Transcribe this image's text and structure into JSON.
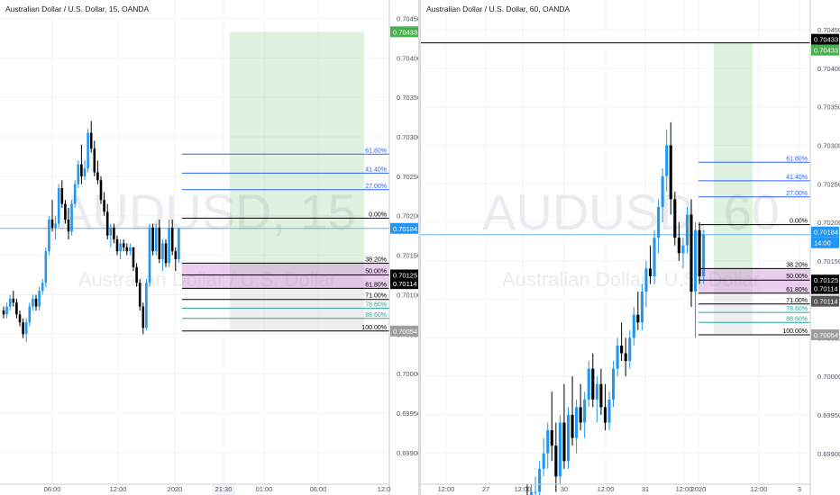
{
  "charts": [
    {
      "id": "left",
      "title": "Australian Dollar / U.S. Dollar, 15, OANDA",
      "watermark_symbol": "AUDUSD, 15",
      "watermark_desc": "Australian Dollar / U.S. Dollar",
      "x_ticks": [
        "06:00",
        "12:00",
        "2020",
        "21:30",
        "01:00",
        "06:00",
        "12:0"
      ],
      "current_time_label": "21:30"
    },
    {
      "id": "right",
      "title": "Australian Dollar / U.S. Dollar, 60, OANDA",
      "watermark_symbol": "AUDUSD, 60",
      "watermark_desc": "Australian Dollar / U.S. Dollar",
      "x_ticks": [
        "12:00",
        "27",
        "12:00",
        "30",
        "12:00",
        "31",
        "12:00",
        "2020",
        "12:00",
        "3"
      ],
      "current_time_label": "14:00"
    }
  ],
  "chart_data": [
    {
      "type": "candlestick",
      "title": "Australian Dollar / U.S. Dollar, 15, OANDA",
      "ylim": [
        0.6986,
        0.70455
      ],
      "y_ticks": [
        0.7045,
        0.704,
        0.7035,
        0.703,
        0.7025,
        0.702,
        0.7015,
        0.701,
        0.7005,
        0.7,
        0.6995,
        0.699
      ],
      "price_badges": [
        {
          "value": "0.70433",
          "color": "#4caf50"
        },
        {
          "value": "0.70184",
          "color": "#2196f3"
        },
        {
          "value": "0.70125",
          "color": "#000000"
        },
        {
          "value": "0.70114",
          "color": "#000000"
        },
        {
          "value": "0.70054",
          "color": "#9e9e9e"
        }
      ],
      "fibonacci_levels": [
        {
          "label": "61.80%",
          "value": 0.70278,
          "color": "#2962ff"
        },
        {
          "label": "41.40%",
          "value": 0.70254,
          "color": "#2962ff"
        },
        {
          "label": "27.00%",
          "value": 0.70233,
          "color": "#2962ff"
        },
        {
          "label": "0.00%",
          "value": 0.70197,
          "color": "#000000"
        },
        {
          "label": "38.20%",
          "value": 0.7014,
          "color": "#000000"
        },
        {
          "label": "50.00%",
          "value": 0.70125,
          "color": "#000000"
        },
        {
          "label": "61.80%",
          "value": 0.70108,
          "color": "#000000"
        },
        {
          "label": "71.00%",
          "value": 0.70094,
          "color": "#000000"
        },
        {
          "label": "78.60%",
          "value": 0.70083,
          "color": "#26a69a"
        },
        {
          "label": "88.60%",
          "value": 0.7007,
          "color": "#26a69a"
        },
        {
          "label": "100.00%",
          "value": 0.70054,
          "color": "#000000"
        }
      ],
      "position": {
        "entry": 0.70125,
        "target": 0.70433,
        "stop": 0.70054
      },
      "last_price": 0.70184,
      "candles": [
        [
          0.7008,
          0.70085,
          0.7007,
          0.70075
        ],
        [
          0.70075,
          0.7009,
          0.7007,
          0.70085
        ],
        [
          0.70085,
          0.701,
          0.7008,
          0.70095
        ],
        [
          0.70095,
          0.70105,
          0.70085,
          0.7009
        ],
        [
          0.7009,
          0.70095,
          0.7007,
          0.70075
        ],
        [
          0.70075,
          0.7008,
          0.7006,
          0.70065
        ],
        [
          0.70065,
          0.7007,
          0.70045,
          0.7005
        ],
        [
          0.7005,
          0.7007,
          0.7004,
          0.70065
        ],
        [
          0.70065,
          0.7009,
          0.7006,
          0.70085
        ],
        [
          0.70085,
          0.701,
          0.7008,
          0.70095
        ],
        [
          0.70095,
          0.701,
          0.7008,
          0.70085
        ],
        [
          0.70085,
          0.7011,
          0.7008,
          0.70105
        ],
        [
          0.70105,
          0.7012,
          0.701,
          0.70115
        ],
        [
          0.70115,
          0.7016,
          0.7011,
          0.70155
        ],
        [
          0.70155,
          0.702,
          0.7015,
          0.70195
        ],
        [
          0.70195,
          0.7022,
          0.7018,
          0.70185
        ],
        [
          0.70185,
          0.702,
          0.7017,
          0.7019
        ],
        [
          0.7019,
          0.7024,
          0.70185,
          0.70235
        ],
        [
          0.70235,
          0.70245,
          0.7021,
          0.70215
        ],
        [
          0.70215,
          0.7022,
          0.7019,
          0.70195
        ],
        [
          0.70195,
          0.7021,
          0.7017,
          0.7018
        ],
        [
          0.7018,
          0.7022,
          0.70175,
          0.70215
        ],
        [
          0.70215,
          0.70245,
          0.7021,
          0.7024
        ],
        [
          0.7024,
          0.7027,
          0.70235,
          0.70265
        ],
        [
          0.70265,
          0.7029,
          0.7024,
          0.7025
        ],
        [
          0.7025,
          0.7027,
          0.70245,
          0.7026
        ],
        [
          0.7026,
          0.7031,
          0.70255,
          0.70305
        ],
        [
          0.70305,
          0.7032,
          0.7028,
          0.70285
        ],
        [
          0.70285,
          0.70295,
          0.7025,
          0.70255
        ],
        [
          0.70255,
          0.7027,
          0.7024,
          0.70245
        ],
        [
          0.70245,
          0.7025,
          0.70215,
          0.7022
        ],
        [
          0.7022,
          0.7023,
          0.702,
          0.70205
        ],
        [
          0.70205,
          0.70215,
          0.7017,
          0.70175
        ],
        [
          0.70175,
          0.7019,
          0.7016,
          0.70185
        ],
        [
          0.70185,
          0.7019,
          0.70165,
          0.7017
        ],
        [
          0.7017,
          0.70175,
          0.7015,
          0.70155
        ],
        [
          0.70155,
          0.7017,
          0.70145,
          0.70165
        ],
        [
          0.70165,
          0.7017,
          0.70155,
          0.7016
        ],
        [
          0.7016,
          0.70165,
          0.7015,
          0.70155
        ],
        [
          0.70155,
          0.70165,
          0.7015,
          0.7016
        ],
        [
          0.7016,
          0.7016,
          0.7013,
          0.70135
        ],
        [
          0.70135,
          0.7014,
          0.7011,
          0.70115
        ],
        [
          0.70115,
          0.7012,
          0.7008,
          0.70085
        ],
        [
          0.70085,
          0.7009,
          0.7005,
          0.70058
        ],
        [
          0.70058,
          0.7012,
          0.70055,
          0.70115
        ],
        [
          0.70115,
          0.7019,
          0.7011,
          0.70185
        ],
        [
          0.70185,
          0.7019,
          0.7015,
          0.70155
        ],
        [
          0.70155,
          0.7019,
          0.7015,
          0.70185
        ],
        [
          0.70185,
          0.70195,
          0.7014,
          0.70145
        ],
        [
          0.70145,
          0.7017,
          0.7013,
          0.70165
        ],
        [
          0.70165,
          0.7017,
          0.70135,
          0.7014
        ],
        [
          0.7014,
          0.70195,
          0.70135,
          0.70185
        ],
        [
          0.70185,
          0.70195,
          0.7015,
          0.70155
        ],
        [
          0.70155,
          0.7016,
          0.7013,
          0.70145
        ],
        [
          0.70145,
          0.70185,
          0.7014,
          0.70184
        ]
      ]
    },
    {
      "type": "candlestick",
      "title": "Australian Dollar / U.S. Dollar, 60, OANDA",
      "ylim": [
        0.6986,
        0.7047
      ],
      "y_ticks": [
        0.7045,
        0.704,
        0.7035,
        0.703,
        0.7025,
        0.702,
        0.7015,
        0.701,
        0.7005,
        0.7,
        0.6995,
        0.699
      ],
      "price_badges": [
        {
          "value": "0.70433",
          "color": "#000000"
        },
        {
          "value": "0.70433",
          "color": "#4caf50"
        },
        {
          "value": "0.70184",
          "color": "#2196f3"
        },
        {
          "value": "14:00",
          "color": "#2196f3"
        },
        {
          "value": "0.70125",
          "color": "#000000"
        },
        {
          "value": "0.70114",
          "color": "#000000"
        },
        {
          "value": "0.70114",
          "color": "#555555"
        },
        {
          "value": "0.70054",
          "color": "#9e9e9e"
        }
      ],
      "fibonacci_levels": [
        {
          "label": "61.80%",
          "value": 0.70278,
          "color": "#2962ff"
        },
        {
          "label": "41.40%",
          "value": 0.70254,
          "color": "#2962ff"
        },
        {
          "label": "27.00%",
          "value": 0.70233,
          "color": "#2962ff"
        },
        {
          "label": "0.00%",
          "value": 0.70197,
          "color": "#000000"
        },
        {
          "label": "38.20%",
          "value": 0.7014,
          "color": "#000000"
        },
        {
          "label": "50.00%",
          "value": 0.70125,
          "color": "#000000"
        },
        {
          "label": "61.80%",
          "value": 0.70108,
          "color": "#000000"
        },
        {
          "label": "71.00%",
          "value": 0.70094,
          "color": "#000000"
        },
        {
          "label": "78.60%",
          "value": 0.70083,
          "color": "#26a69a"
        },
        {
          "label": "88.60%",
          "value": 0.7007,
          "color": "#26a69a"
        },
        {
          "label": "100.00%",
          "value": 0.70054,
          "color": "#000000"
        }
      ],
      "position": {
        "entry": 0.70125,
        "target": 0.70433,
        "stop": 0.70054
      },
      "horizontal_line": 0.70433,
      "last_price": 0.70184,
      "candles": [
        [
          0.6984,
          0.6986,
          0.6982,
          0.6983
        ],
        [
          0.6983,
          0.6986,
          0.6982,
          0.6985
        ],
        [
          0.6985,
          0.6987,
          0.6984,
          0.6985
        ],
        [
          0.6985,
          0.6989,
          0.6984,
          0.6988
        ],
        [
          0.6988,
          0.6992,
          0.6987,
          0.699
        ],
        [
          0.699,
          0.6994,
          0.6988,
          0.6993
        ],
        [
          0.6993,
          0.6998,
          0.6989,
          0.6991
        ],
        [
          0.6991,
          0.6994,
          0.6985,
          0.6987
        ],
        [
          0.6987,
          0.6995,
          0.6986,
          0.6994
        ],
        [
          0.6994,
          0.6999,
          0.6988,
          0.6989
        ],
        [
          0.6989,
          0.6996,
          0.6988,
          0.6995
        ],
        [
          0.6995,
          0.7,
          0.6991,
          0.6992
        ],
        [
          0.6992,
          0.6997,
          0.699,
          0.6996
        ],
        [
          0.6996,
          0.6999,
          0.6993,
          0.6994
        ],
        [
          0.6994,
          0.6998,
          0.6992,
          0.6997
        ],
        [
          0.6997,
          0.7002,
          0.6996,
          0.7001
        ],
        [
          0.7001,
          0.7003,
          0.6996,
          0.6997
        ],
        [
          0.6997,
          0.7,
          0.6994,
          0.6999
        ],
        [
          0.6999,
          0.7001,
          0.6995,
          0.6996
        ],
        [
          0.6996,
          0.6999,
          0.6993,
          0.6994
        ],
        [
          0.6994,
          0.6998,
          0.6993,
          0.6997
        ],
        [
          0.6997,
          0.7002,
          0.6996,
          0.7001
        ],
        [
          0.7001,
          0.7005,
          0.7,
          0.7004
        ],
        [
          0.7004,
          0.7007,
          0.7002,
          0.7003
        ],
        [
          0.7003,
          0.7005,
          0.7,
          0.7002
        ],
        [
          0.7002,
          0.7006,
          0.7001,
          0.7005
        ],
        [
          0.7005,
          0.7009,
          0.7004,
          0.7008
        ],
        [
          0.7008,
          0.7011,
          0.7006,
          0.7007
        ],
        [
          0.7007,
          0.7012,
          0.7006,
          0.7011
        ],
        [
          0.7011,
          0.7015,
          0.7009,
          0.7014
        ],
        [
          0.7014,
          0.7017,
          0.7012,
          0.7013
        ],
        [
          0.7013,
          0.7019,
          0.7012,
          0.7018
        ],
        [
          0.7018,
          0.7023,
          0.7016,
          0.7022
        ],
        [
          0.7022,
          0.7027,
          0.702,
          0.7026
        ],
        [
          0.7026,
          0.7032,
          0.7024,
          0.703
        ],
        [
          0.703,
          0.7033,
          0.7021,
          0.7023
        ],
        [
          0.7023,
          0.7024,
          0.7017,
          0.7018
        ],
        [
          0.7018,
          0.702,
          0.7015,
          0.7016
        ],
        [
          0.7016,
          0.7018,
          0.7014,
          0.7017
        ],
        [
          0.7017,
          0.7022,
          0.7016,
          0.7021
        ],
        [
          0.7021,
          0.7023,
          0.7009,
          0.7011
        ],
        [
          0.7011,
          0.702,
          0.7005,
          0.7019
        ],
        [
          0.7019,
          0.702,
          0.7012,
          0.7013
        ],
        [
          0.7013,
          0.7019,
          0.7012,
          0.70184
        ]
      ]
    }
  ]
}
